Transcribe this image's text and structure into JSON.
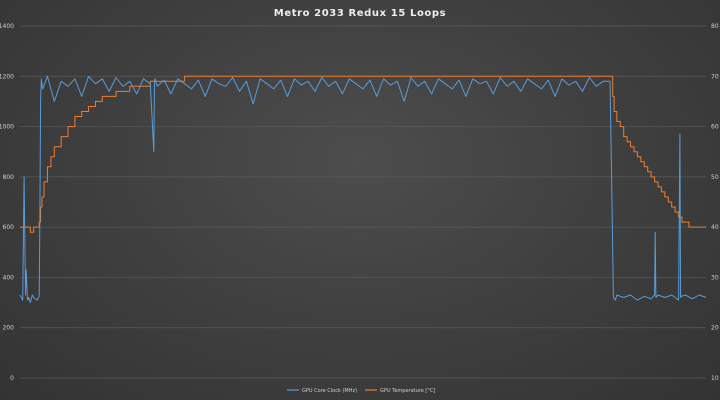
{
  "chart_data": {
    "type": "line",
    "title": "Metro 2033 Redux 15 Loops",
    "xlabel": "",
    "grid": true,
    "legend_position": "bottom-center",
    "y_left": {
      "lim": [
        0,
        1400
      ],
      "ticks": [
        0,
        200,
        400,
        600,
        800,
        1000,
        1200,
        1400
      ]
    },
    "y_right": {
      "lim": [
        10,
        80
      ],
      "ticks": [
        10,
        20,
        30,
        40,
        50,
        60,
        70,
        80
      ]
    },
    "x_range": [
      0,
      1000
    ],
    "series": [
      {
        "name": "GPU Core Clock (MHz)",
        "axis": "left",
        "color": "#5b9bd5",
        "x": [
          0,
          2,
          4,
          6,
          8,
          9,
          11,
          13,
          15,
          18,
          20,
          25,
          28,
          29,
          30,
          31,
          33,
          40,
          50,
          60,
          70,
          80,
          90,
          100,
          110,
          120,
          130,
          140,
          150,
          160,
          170,
          180,
          190,
          195,
          196,
          197,
          200,
          210,
          220,
          230,
          240,
          250,
          260,
          270,
          280,
          290,
          300,
          310,
          320,
          330,
          340,
          350,
          360,
          370,
          380,
          390,
          400,
          410,
          420,
          430,
          440,
          450,
          460,
          470,
          480,
          490,
          500,
          510,
          520,
          530,
          540,
          550,
          560,
          570,
          580,
          590,
          600,
          610,
          620,
          630,
          640,
          650,
          660,
          670,
          680,
          690,
          700,
          710,
          720,
          730,
          740,
          750,
          760,
          770,
          780,
          790,
          800,
          810,
          820,
          830,
          840,
          850,
          860,
          863,
          865,
          868,
          870,
          880,
          890,
          900,
          910,
          920,
          925,
          926,
          927,
          930,
          940,
          950,
          960,
          962,
          963,
          964,
          970,
          980,
          990,
          1000
        ],
        "y": [
          330,
          320,
          310,
          800,
          330,
          430,
          310,
          320,
          300,
          330,
          320,
          310,
          325,
          650,
          1100,
          1190,
          1150,
          1200,
          1100,
          1180,
          1160,
          1190,
          1120,
          1200,
          1170,
          1190,
          1140,
          1195,
          1160,
          1180,
          1130,
          1190,
          1170,
          900,
          1180,
          1190,
          1160,
          1185,
          1130,
          1190,
          1170,
          1150,
          1185,
          1120,
          1190,
          1170,
          1160,
          1195,
          1140,
          1180,
          1090,
          1190,
          1170,
          1150,
          1185,
          1120,
          1190,
          1165,
          1180,
          1140,
          1195,
          1160,
          1180,
          1130,
          1190,
          1170,
          1150,
          1185,
          1120,
          1190,
          1165,
          1180,
          1100,
          1195,
          1160,
          1180,
          1130,
          1190,
          1170,
          1150,
          1185,
          1120,
          1190,
          1170,
          1180,
          1130,
          1195,
          1160,
          1180,
          1140,
          1190,
          1170,
          1150,
          1185,
          1120,
          1190,
          1165,
          1180,
          1140,
          1195,
          1160,
          1180,
          1180,
          700,
          320,
          310,
          330,
          320,
          330,
          310,
          325,
          315,
          330,
          580,
          320,
          330,
          320,
          330,
          310,
          970,
          320,
          325,
          330,
          315,
          330,
          320
        ]
      },
      {
        "name": "GPU Temperature [°C]",
        "axis": "right",
        "color": "#ed7d31",
        "x": [
          0,
          5,
          10,
          15,
          20,
          25,
          28,
          30,
          32,
          35,
          40,
          45,
          50,
          60,
          70,
          80,
          90,
          100,
          110,
          120,
          130,
          140,
          150,
          160,
          170,
          180,
          190,
          200,
          220,
          240,
          260,
          280,
          300,
          350,
          400,
          450,
          500,
          550,
          600,
          650,
          700,
          750,
          800,
          850,
          862,
          864,
          866,
          870,
          875,
          880,
          885,
          890,
          895,
          900,
          905,
          910,
          915,
          920,
          925,
          930,
          935,
          940,
          945,
          950,
          955,
          960,
          965,
          970,
          975,
          980,
          1000
        ],
        "y": [
          40,
          40,
          40,
          39,
          40,
          40,
          41,
          44,
          46,
          49,
          52,
          54,
          56,
          58,
          60,
          62,
          63,
          64,
          65,
          66,
          66,
          67,
          67,
          68,
          68,
          68,
          69,
          69,
          69,
          70,
          70,
          70,
          70,
          70,
          70,
          70,
          70,
          70,
          70,
          70,
          70,
          70,
          70,
          70,
          70,
          66,
          63,
          61,
          60,
          58,
          57,
          56,
          55,
          54,
          53,
          52,
          51,
          50,
          49,
          48,
          47,
          46,
          45,
          44,
          43,
          42,
          41,
          41,
          40,
          40,
          40
        ]
      }
    ]
  }
}
